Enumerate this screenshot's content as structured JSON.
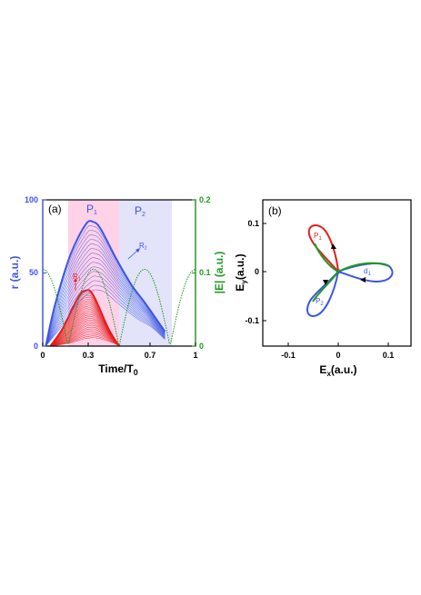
{
  "chart_data": [
    {
      "panel_label": "(a)",
      "type": "line",
      "xlabel": "Time/T",
      "xlabel_subscript": "0",
      "ylabel_left": "r (a.u.)",
      "ylabel_right": "|E| (a.u.)",
      "xlim": [
        0,
        1
      ],
      "ylim_left": [
        0,
        100
      ],
      "ylim_right": [
        0,
        0.2
      ],
      "xticks": [
        "0",
        "0.3",
        "0.7",
        "1"
      ],
      "yticks_left": [
        "0",
        "50",
        "100"
      ],
      "yticks_right": [
        "0",
        "0.1",
        "0.2"
      ],
      "left_axis_color": "#3b56e6",
      "right_axis_color": "#1f9a1f",
      "regions": [
        {
          "name": "P",
          "sub": "1",
          "x": [
            0.17,
            0.5
          ],
          "color": "#ff9ccd"
        },
        {
          "name": "P",
          "sub": "2",
          "x": [
            0.5,
            0.84
          ],
          "color": "#c8c8f4"
        }
      ],
      "annotations": [
        {
          "name": "R",
          "sub": "1",
          "color": "#e51e1e"
        },
        {
          "name": "R",
          "sub": "2",
          "color": "#3b56e6"
        }
      ],
      "series": [
        {
          "color": "#3b56e6",
          "description_group": "blue trajectories",
          "x": [
            0.02,
            0.1,
            0.2,
            0.3,
            0.35,
            0.4,
            0.5,
            0.6,
            0.7,
            0.8
          ],
          "y": [
            0,
            28,
            62,
            83,
            85,
            80,
            60,
            42,
            28,
            10
          ]
        },
        {
          "color": "#e51e1e",
          "description_group": "red trajectories",
          "x": [
            0.05,
            0.15,
            0.25,
            0.3,
            0.35,
            0.45,
            0.5
          ],
          "y": [
            0,
            12,
            33,
            38,
            35,
            12,
            0
          ]
        },
        {
          "color": "#1f9a1f",
          "axis": "right",
          "dashed": true,
          "x": [
            0,
            0.17,
            0.33,
            0.5,
            0.67,
            0.83,
            1
          ],
          "y": [
            0.105,
            0,
            0.105,
            0,
            0.105,
            0,
            0.105
          ]
        }
      ]
    },
    {
      "panel_label": "(b)",
      "type": "line",
      "xlabel": "E",
      "xlabel_subscript": "x",
      "xlabel_suffix": "(a.u.)",
      "ylabel": "E",
      "ylabel_subscript": "y",
      "ylabel_suffix": "(a.u.)",
      "xlim": [
        -0.15,
        0.15
      ],
      "ylim": [
        -0.15,
        0.15
      ],
      "xticks": [
        "-0.1",
        "0",
        "0.1"
      ],
      "yticks": [
        "-0.1",
        "0",
        "0.1"
      ],
      "lobes": [
        {
          "name": "P",
          "sub": "1",
          "color": "#e51e1e"
        },
        {
          "name": "P",
          "sub": "2",
          "color": "#3b56e6"
        },
        {
          "name": "d",
          "sub": "1",
          "color": "#3b56e6"
        }
      ],
      "curve_colors": [
        "#e51e1e",
        "#1f9a1f",
        "#3b56e6"
      ]
    }
  ]
}
